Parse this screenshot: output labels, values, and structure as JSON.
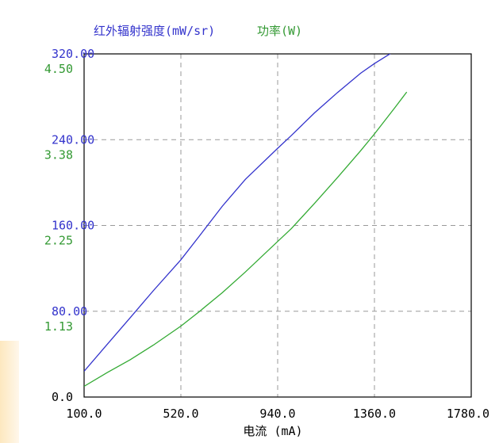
{
  "chart_data": {
    "type": "line",
    "title_left": "红外辐射强度(mW/sr)",
    "title_right": "功率(W)",
    "xlabel": "电流 (mA)",
    "x_ticks": [
      "100.0",
      "520.0",
      "940.0",
      "1360.0",
      "1780.0"
    ],
    "y_ticks_left": [
      "0.0",
      "80.00",
      "160.00",
      "240.00",
      "320.00"
    ],
    "y_ticks_right": [
      "1.13",
      "2.25",
      "3.38",
      "4.50"
    ],
    "xlim": [
      100,
      1780
    ],
    "ylim_left": [
      0,
      320
    ],
    "ylim_right": [
      0,
      4.5
    ],
    "grid": true,
    "series": [
      {
        "name": "红外辐射强度(mW/sr)",
        "axis": "left",
        "color": "#3333cc",
        "x": [
          100,
          200,
          300,
          400,
          520,
          600,
          700,
          800,
          940,
          1000,
          1100,
          1200,
          1300,
          1360,
          1450,
          1500
        ],
        "y": [
          24,
          49,
          74,
          99,
          128,
          150,
          178,
          203,
          232,
          244,
          265,
          284,
          302,
          311,
          323,
          332
        ]
      },
      {
        "name": "功率(W)",
        "axis": "right",
        "color": "#33aa33",
        "x": [
          100,
          200,
          300,
          400,
          520,
          600,
          700,
          800,
          940,
          1000,
          1100,
          1200,
          1300,
          1360,
          1450,
          1500
        ],
        "y": [
          0.14,
          0.32,
          0.49,
          0.68,
          0.93,
          1.12,
          1.37,
          1.64,
          2.04,
          2.21,
          2.54,
          2.88,
          3.23,
          3.45,
          3.8,
          4.0
        ]
      }
    ]
  },
  "colors": {
    "left_axis": "#3333cc",
    "right_axis": "#339933",
    "frame": "#000000",
    "grid": "#999999"
  }
}
